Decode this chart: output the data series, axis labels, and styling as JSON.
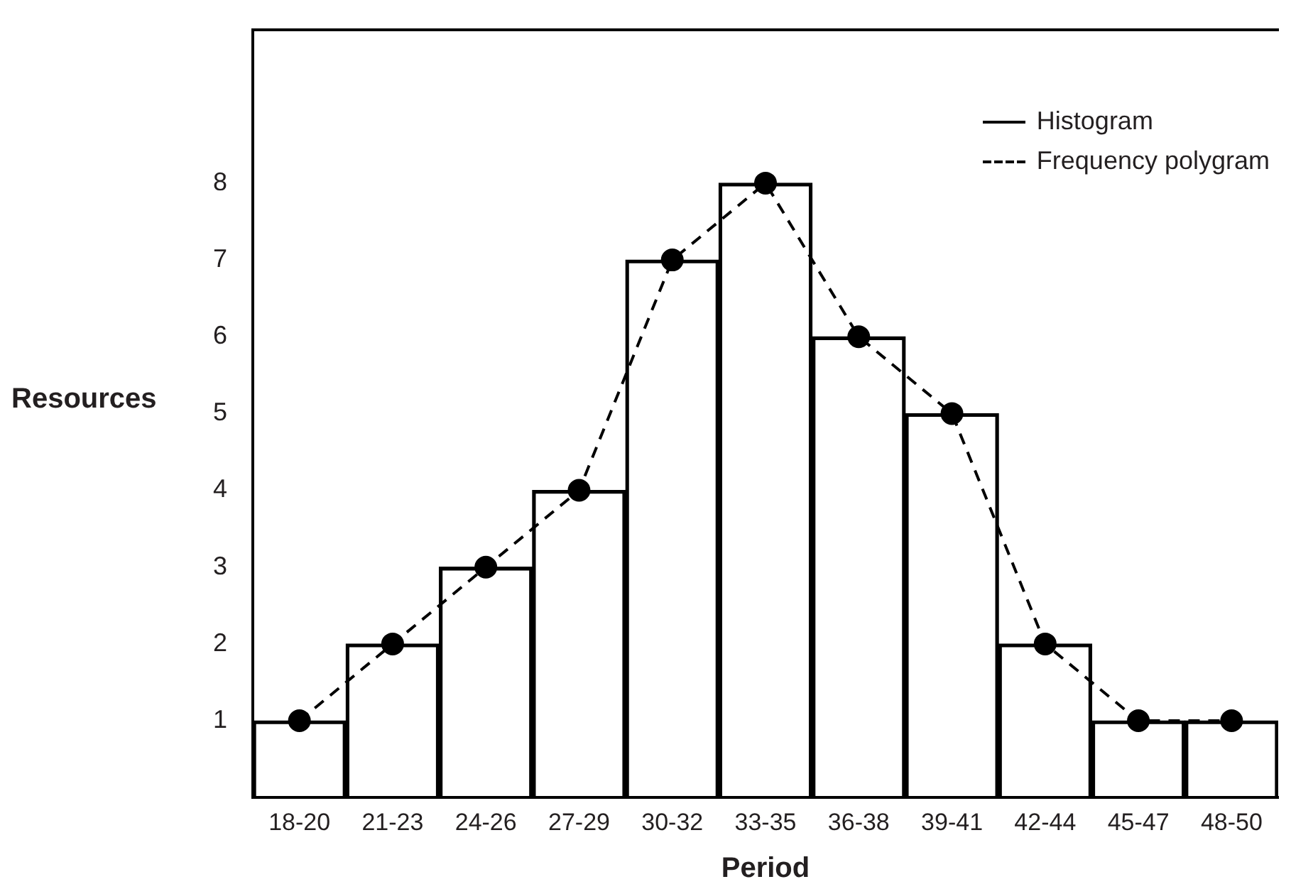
{
  "chart_data": {
    "type": "bar",
    "xlabel": "Period",
    "ylabel": "Resources",
    "categories": [
      "18-20",
      "21-23",
      "24-26",
      "27-29",
      "30-32",
      "33-35",
      "36-38",
      "39-41",
      "42-44",
      "45-47",
      "48-50"
    ],
    "series": [
      {
        "name": "Histogram",
        "color": "#000000",
        "values": [
          1,
          2,
          3,
          4,
          7,
          8,
          6,
          5,
          2,
          1,
          1
        ]
      },
      {
        "name": "Frequency polygram",
        "type": "line",
        "color": "#000000",
        "line_style": "dashed",
        "marker": "circle",
        "values": [
          1,
          2,
          3,
          4,
          7,
          8,
          6,
          5,
          2,
          1,
          1
        ]
      }
    ],
    "ylim": [
      0,
      10
    ],
    "yticks": [
      1,
      2,
      3,
      4,
      5,
      6,
      7,
      8
    ],
    "grid": false,
    "legend": "top right"
  }
}
